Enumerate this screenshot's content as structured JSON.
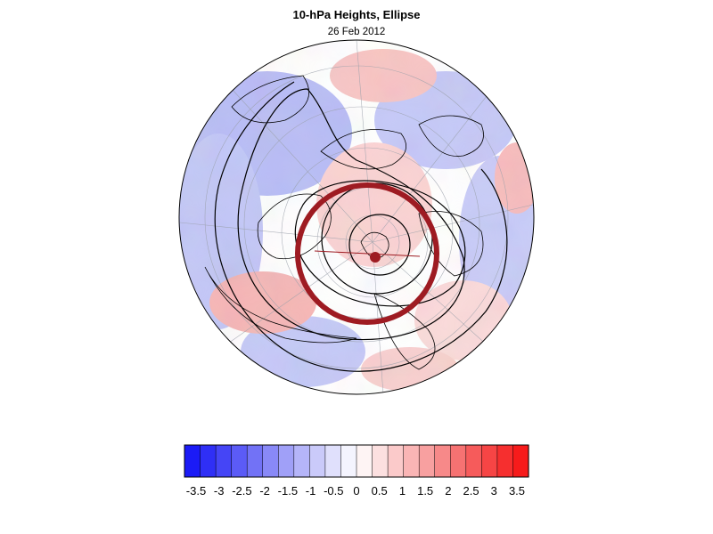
{
  "header": {
    "title": "10-hPa Heights, Ellipse",
    "date": "26 Feb 2012"
  },
  "map": {
    "projection": "orthographic",
    "field": "10-hPa height anomaly (normalized)",
    "colors": {
      "negative": "#5f6ff2",
      "positive": "#f36b6b",
      "neutral": "#ffffff",
      "contour": "#000000",
      "ellipse": "#9e1b22",
      "coastline": "#000000",
      "graticule": "#9aa0aa"
    }
  },
  "colorbar": {
    "tick_labels": [
      "-3.5",
      "-3",
      "-2.5",
      "-2",
      "-1.5",
      "-1",
      "-0.5",
      "0",
      "0.5",
      "1",
      "1.5",
      "2",
      "2.5",
      "3",
      "3.5"
    ],
    "bins": [
      "#1b1bf6",
      "#2f2ff6",
      "#4545f6",
      "#5b5bf6",
      "#7272f6",
      "#8989f7",
      "#a0a0f8",
      "#b5b5f9",
      "#cacafa",
      "#e0e0fc",
      "#f4f4fe",
      "#fef4f4",
      "#fce0e0",
      "#fbcaca",
      "#fab5b5",
      "#f8a0a0",
      "#f78989",
      "#f67272",
      "#f65b5b",
      "#f64545",
      "#f62f2f",
      "#f71b1b"
    ]
  }
}
